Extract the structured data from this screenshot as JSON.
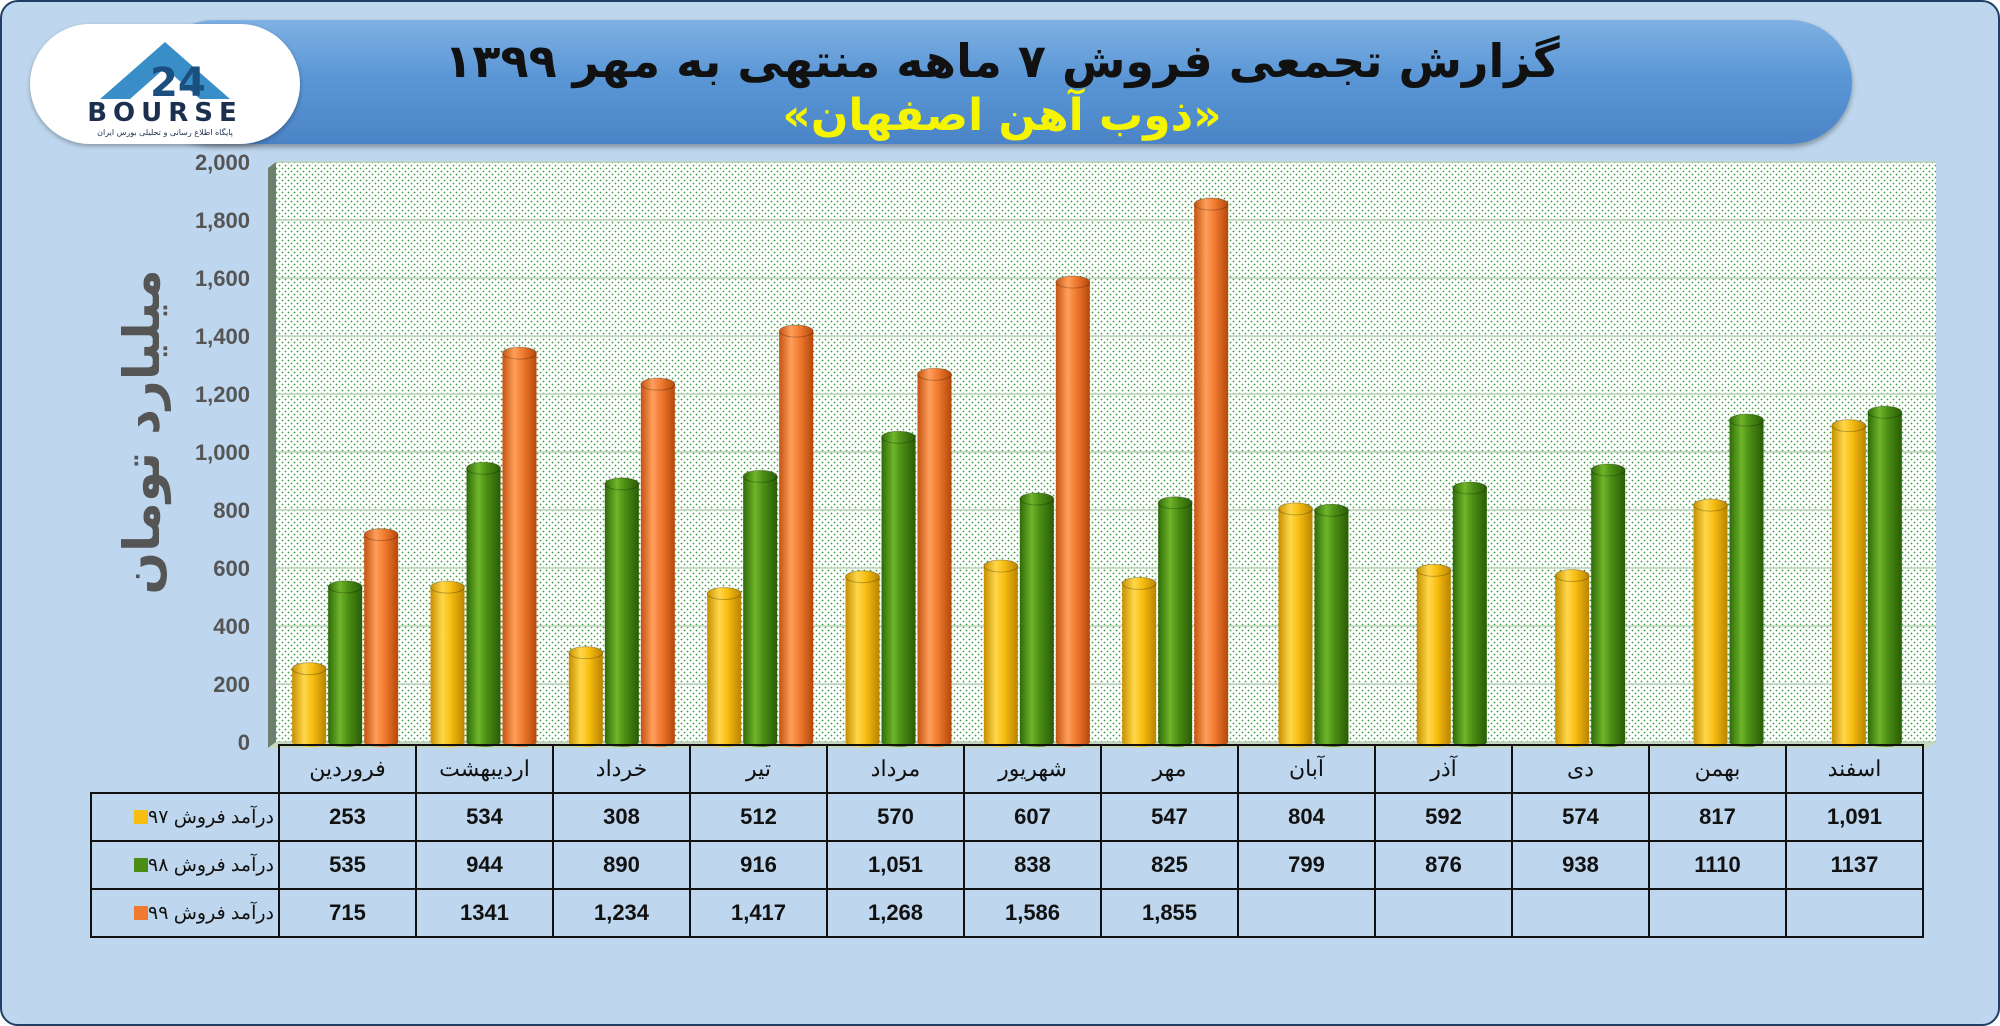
{
  "title": {
    "line1": "گزارش تجمعی فروش ۷ ماهه منتهی به مهر ۱۳۹۹",
    "line2": "«ذوب آهن اصفهان»"
  },
  "logo": {
    "text": "BOURSE",
    "subtitle": "پایگاه اطلاع رسانی و تحلیلی بورس ایران"
  },
  "colors": {
    "series_97": "#f7bd12",
    "series_98": "#4a8c14",
    "series_99": "#f07a30",
    "plot_bg": "#ffffff",
    "dots": "#3a9a3a"
  },
  "chart_data": {
    "type": "bar",
    "ylabel": "میلیارد تومان",
    "ylim": [
      0,
      2000
    ],
    "yticks": [
      "0",
      "200",
      "400",
      "600",
      "800",
      "1,000",
      "1,200",
      "1,400",
      "1,600",
      "1,800",
      "2,000"
    ],
    "grid": true,
    "categories": [
      "فروردین",
      "اردیبهشت",
      "خرداد",
      "تیر",
      "مرداد",
      "شهریور",
      "مهر",
      "آبان",
      "آذر",
      "دی",
      "بهمن",
      "اسفند"
    ],
    "series": [
      {
        "name": "درآمد فروش ۹۷",
        "values": [
          253,
          534,
          308,
          512,
          570,
          607,
          547,
          804,
          592,
          574,
          817,
          1091
        ],
        "labels": [
          "253",
          "534",
          "308",
          "512",
          "570",
          "607",
          "547",
          "804",
          "592",
          "574",
          "817",
          "1,091"
        ]
      },
      {
        "name": "درآمد فروش ۹۸",
        "values": [
          535,
          944,
          890,
          916,
          1051,
          838,
          825,
          799,
          876,
          938,
          1110,
          1137
        ],
        "labels": [
          "535",
          "944",
          "890",
          "916",
          "1,051",
          "838",
          "825",
          "799",
          "876",
          "938",
          "1110",
          "1137"
        ]
      },
      {
        "name": "درآمد فروش ۹۹",
        "values": [
          715,
          1341,
          1234,
          1417,
          1268,
          1586,
          1855,
          null,
          null,
          null,
          null,
          null
        ],
        "labels": [
          "715",
          "1341",
          "1,234",
          "1,417",
          "1,268",
          "1,586",
          "1,855",
          "",
          "",
          "",
          "",
          ""
        ]
      }
    ]
  }
}
